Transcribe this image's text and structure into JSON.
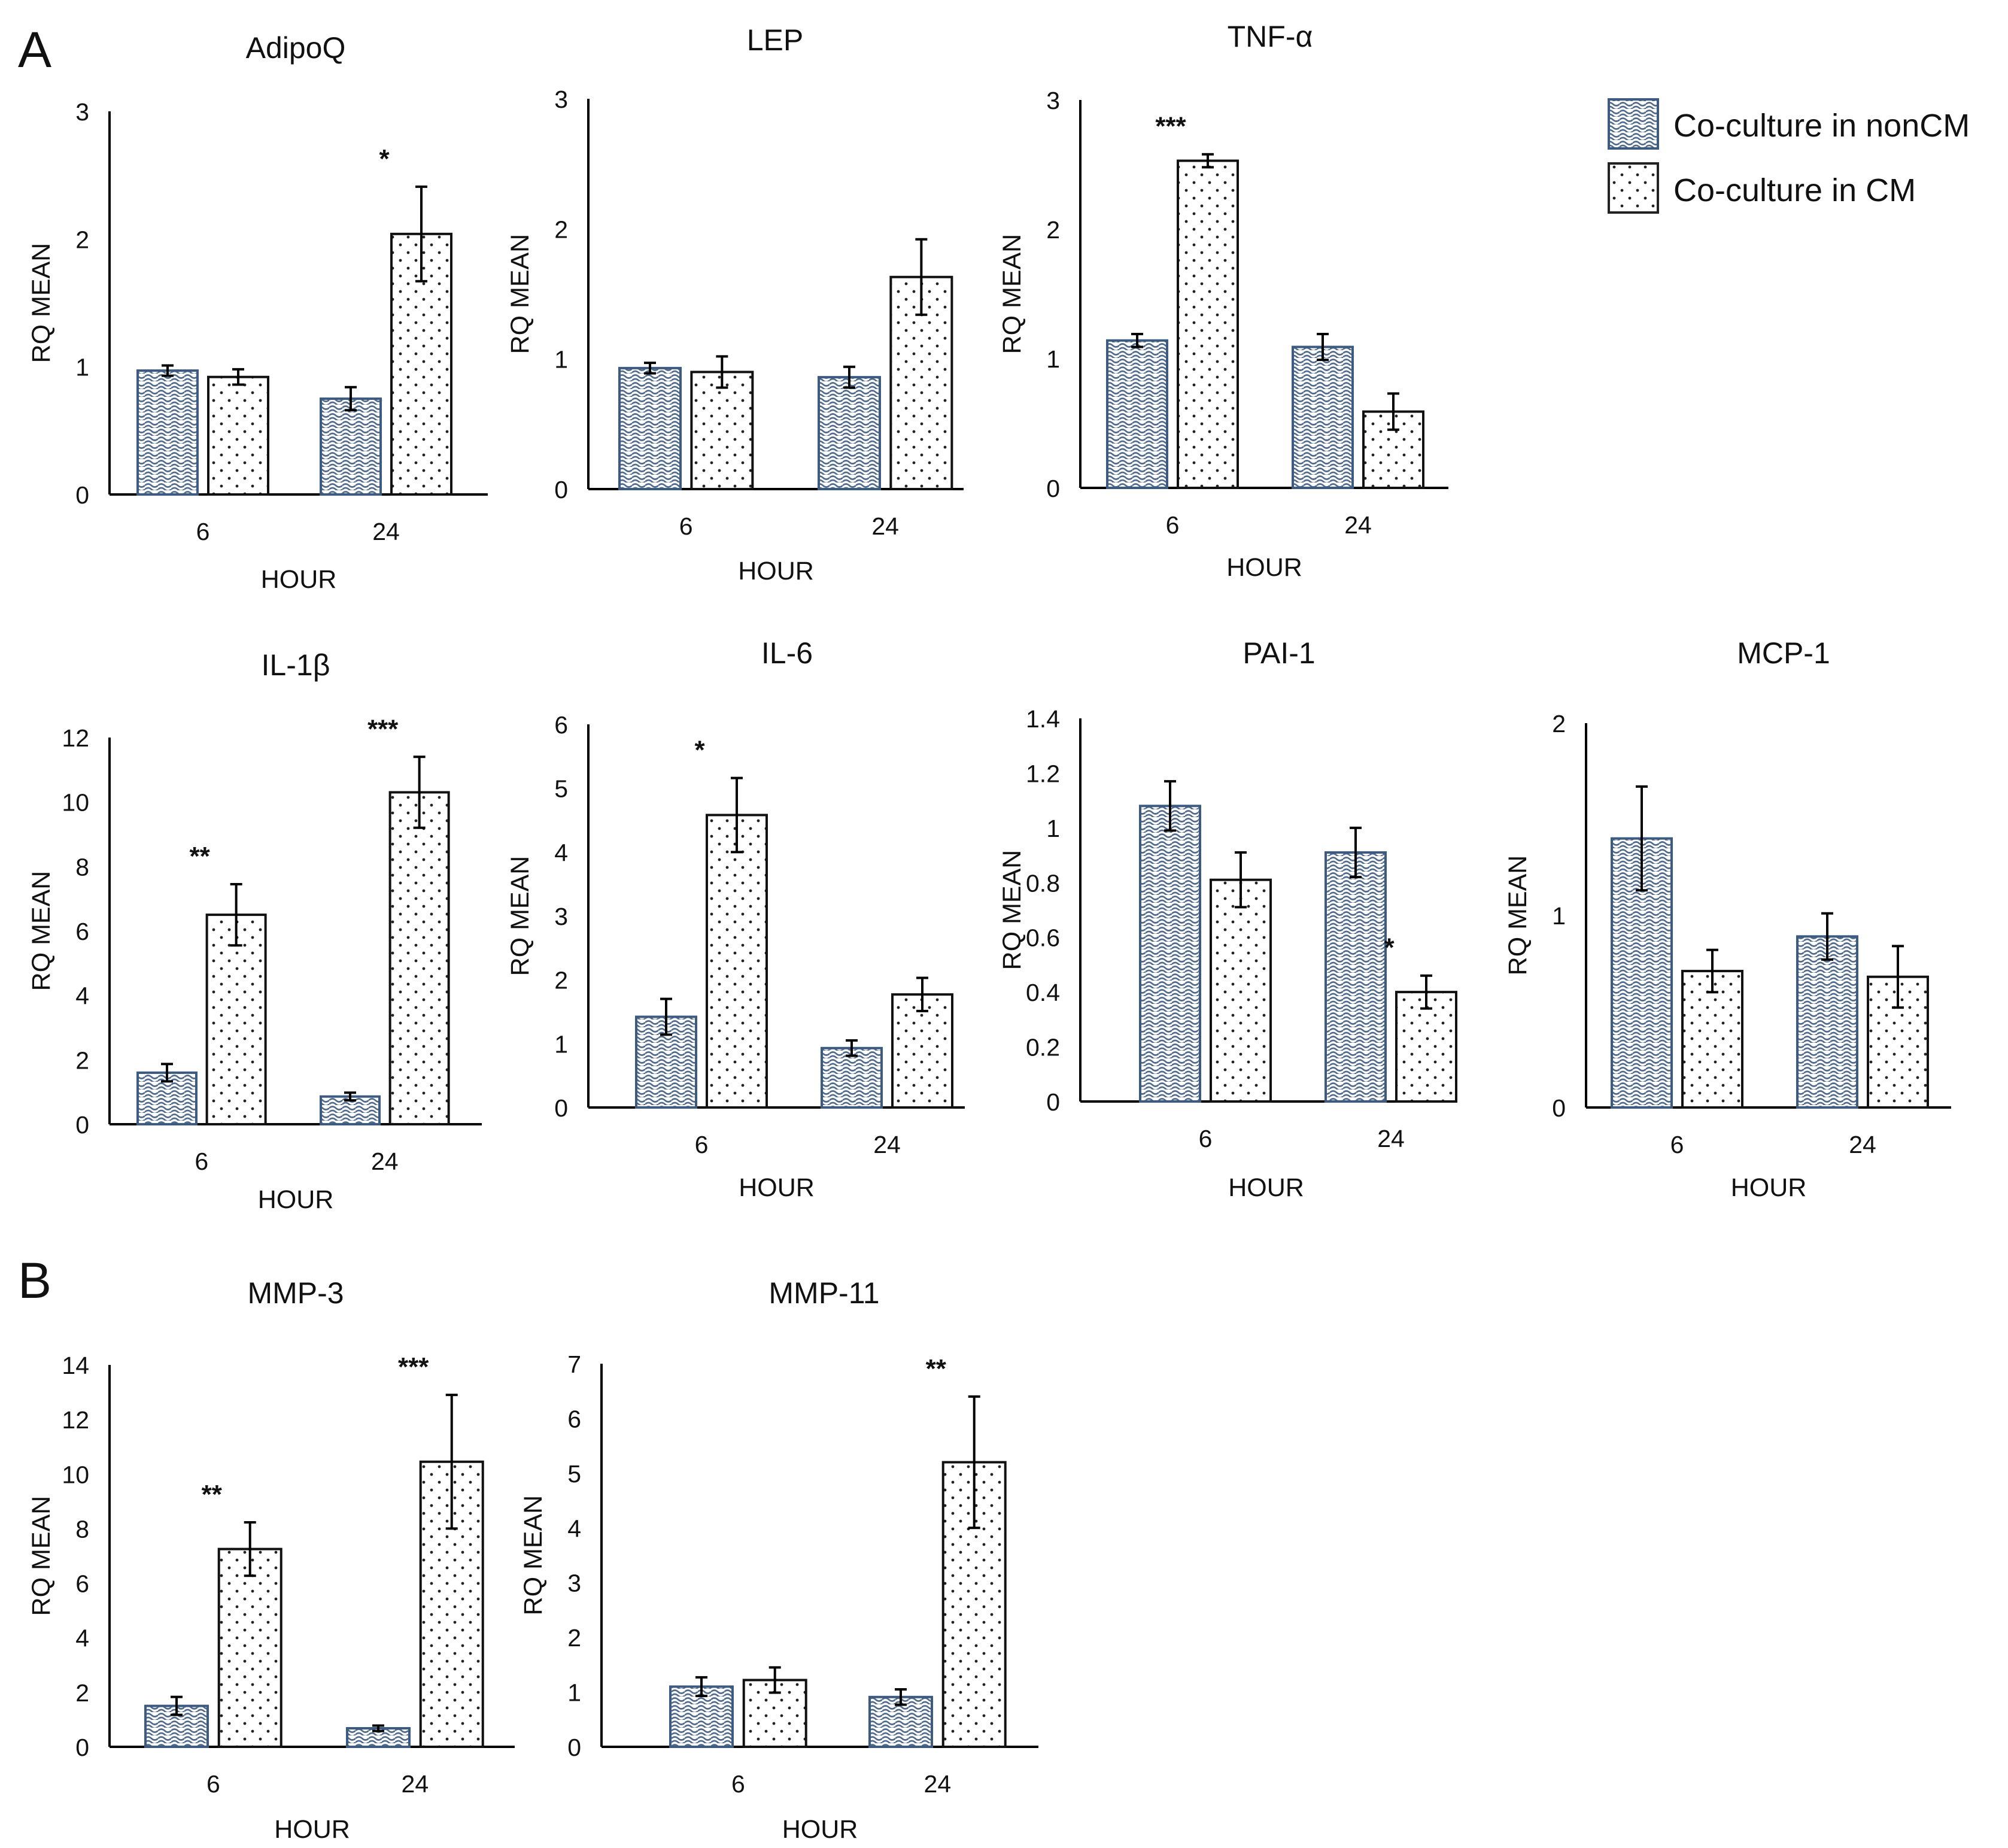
{
  "figure": {
    "panel_labels": [
      "A",
      "B"
    ],
    "legend": [
      {
        "label": "Co-culture in nonCM",
        "pattern": "wave"
      },
      {
        "label": "Co-culture in CM",
        "pattern": "dots"
      }
    ],
    "colors": {
      "wave_stroke": "#4f6a8a",
      "wave_fill": "#a9b9cf",
      "dots": "#222222",
      "axis": "#000000",
      "bar_border_noncm": "#3d5a80"
    }
  },
  "chart_data": [
    {
      "type": "bar",
      "title": "AdipoQ",
      "xlabel": "HOUR",
      "ylabel": "RQ MEAN",
      "categories": [
        "6",
        "24"
      ],
      "ylim": [
        0,
        3
      ],
      "yticks": [
        "0",
        "1",
        "2",
        "3"
      ],
      "series": [
        {
          "name": "Co-culture in nonCM",
          "values": [
            0.97,
            0.75
          ],
          "errors": [
            0.04,
            0.09
          ]
        },
        {
          "name": "Co-culture in CM",
          "values": [
            0.92,
            2.04
          ],
          "errors": [
            0.06,
            0.37
          ]
        }
      ],
      "annotations": [
        {
          "category": "24",
          "series": 1,
          "text": "*"
        }
      ]
    },
    {
      "type": "bar",
      "title": "LEP",
      "xlabel": "HOUR",
      "ylabel": "RQ MEAN",
      "categories": [
        "6",
        "24"
      ],
      "ylim": [
        0,
        3
      ],
      "yticks": [
        "0",
        "1",
        "2",
        "3"
      ],
      "series": [
        {
          "name": "Co-culture in nonCM",
          "values": [
            0.93,
            0.86
          ],
          "errors": [
            0.04,
            0.08
          ]
        },
        {
          "name": "Co-culture in CM",
          "values": [
            0.9,
            1.63
          ],
          "errors": [
            0.12,
            0.29
          ]
        }
      ],
      "annotations": []
    },
    {
      "type": "bar",
      "title": "TNF-α",
      "xlabel": "HOUR",
      "ylabel": "RQ MEAN",
      "categories": [
        "6",
        "24"
      ],
      "ylim": [
        0,
        3
      ],
      "yticks": [
        "0",
        "1",
        "2",
        "3"
      ],
      "series": [
        {
          "name": "Co-culture in nonCM",
          "values": [
            1.14,
            1.09
          ],
          "errors": [
            0.05,
            0.1
          ]
        },
        {
          "name": "Co-culture in CM",
          "values": [
            2.53,
            0.59
          ],
          "errors": [
            0.05,
            0.14
          ]
        }
      ],
      "annotations": [
        {
          "category": "6",
          "series": 1,
          "text": "***"
        }
      ]
    },
    {
      "type": "bar",
      "title": "IL-1β",
      "xlabel": "HOUR",
      "ylabel": "RQ MEAN",
      "categories": [
        "6",
        "24"
      ],
      "ylim": [
        0,
        12
      ],
      "yticks": [
        "0",
        "2",
        "4",
        "6",
        "8",
        "10",
        "12"
      ],
      "series": [
        {
          "name": "Co-culture in nonCM",
          "values": [
            1.6,
            0.86
          ],
          "errors": [
            0.27,
            0.12
          ]
        },
        {
          "name": "Co-culture in CM",
          "values": [
            6.5,
            10.3
          ],
          "errors": [
            0.95,
            1.1
          ]
        }
      ],
      "annotations": [
        {
          "category": "6",
          "series": 1,
          "text": "**"
        },
        {
          "category": "24",
          "series": 1,
          "text": "***"
        }
      ]
    },
    {
      "type": "bar",
      "title": "IL-6",
      "xlabel": "HOUR",
      "ylabel": "RQ MEAN",
      "categories": [
        "6",
        "24"
      ],
      "ylim": [
        0,
        6
      ],
      "yticks": [
        "0",
        "1",
        "2",
        "3",
        "4",
        "5",
        "6"
      ],
      "series": [
        {
          "name": "Co-culture in nonCM",
          "values": [
            1.42,
            0.93
          ],
          "errors": [
            0.28,
            0.12
          ]
        },
        {
          "name": "Co-culture in CM",
          "values": [
            4.58,
            1.77
          ],
          "errors": [
            0.58,
            0.26
          ]
        }
      ],
      "annotations": [
        {
          "category": "6",
          "series": 1,
          "text": "*"
        }
      ]
    },
    {
      "type": "bar",
      "title": "PAI-1",
      "xlabel": "HOUR",
      "ylabel": "RQ MEAN",
      "categories": [
        "6",
        "24"
      ],
      "ylim": [
        0,
        1.4
      ],
      "yticks": [
        "0",
        "0.2",
        "0.4",
        "0.6",
        "0.8",
        "1",
        "1.2",
        "1.4"
      ],
      "series": [
        {
          "name": "Co-culture in nonCM",
          "values": [
            1.08,
            0.91
          ],
          "errors": [
            0.09,
            0.09
          ]
        },
        {
          "name": "Co-culture in CM",
          "values": [
            0.81,
            0.4
          ],
          "errors": [
            0.1,
            0.06
          ]
        }
      ],
      "annotations": [
        {
          "category": "24",
          "series": 1,
          "text": "*"
        }
      ]
    },
    {
      "type": "bar",
      "title": "MCP-1",
      "xlabel": "HOUR",
      "ylabel": "RQ MEAN",
      "categories": [
        "6",
        "24"
      ],
      "ylim": [
        0,
        2
      ],
      "yticks": [
        "0",
        "1",
        "2"
      ],
      "series": [
        {
          "name": "Co-culture in nonCM",
          "values": [
            1.4,
            0.89
          ],
          "errors": [
            0.27,
            0.12
          ]
        },
        {
          "name": "Co-culture in CM",
          "values": [
            0.71,
            0.68
          ],
          "errors": [
            0.11,
            0.16
          ]
        }
      ],
      "annotations": []
    },
    {
      "type": "bar",
      "title": "MMP-3",
      "xlabel": "HOUR",
      "ylabel": "RQ MEAN",
      "categories": [
        "6",
        "24"
      ],
      "ylim": [
        0,
        14
      ],
      "yticks": [
        "0",
        "2",
        "4",
        "6",
        "8",
        "10",
        "12",
        "14"
      ],
      "series": [
        {
          "name": "Co-culture in nonCM",
          "values": [
            1.5,
            0.68
          ],
          "errors": [
            0.33,
            0.1
          ]
        },
        {
          "name": "Co-culture in CM",
          "values": [
            7.25,
            10.45
          ],
          "errors": [
            0.98,
            2.45
          ]
        }
      ],
      "annotations": [
        {
          "category": "6",
          "series": 1,
          "text": "**"
        },
        {
          "category": "24",
          "series": 1,
          "text": "***"
        }
      ]
    },
    {
      "type": "bar",
      "title": "MMP-11",
      "xlabel": "HOUR",
      "ylabel": "RQ MEAN",
      "categories": [
        "6",
        "24"
      ],
      "ylim": [
        0,
        7
      ],
      "yticks": [
        "0",
        "1",
        "2",
        "3",
        "4",
        "5",
        "6",
        "7"
      ],
      "series": [
        {
          "name": "Co-culture in nonCM",
          "values": [
            1.1,
            0.91
          ],
          "errors": [
            0.17,
            0.14
          ]
        },
        {
          "name": "Co-culture in CM",
          "values": [
            1.22,
            5.2
          ],
          "errors": [
            0.23,
            1.2
          ]
        }
      ],
      "annotations": [
        {
          "category": "24",
          "series": 1,
          "text": "**"
        }
      ]
    }
  ]
}
